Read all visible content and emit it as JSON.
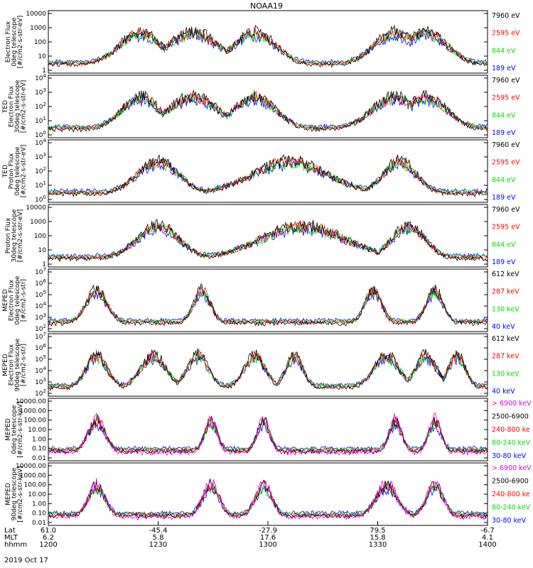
{
  "chart_data": {
    "type": "line",
    "title": "NOAA19",
    "date_label": "2019 Oct 17",
    "x_axis_rows": [
      {
        "label": "Lat",
        "values": [
          "61.0",
          "-45.4",
          "-27.9",
          "79.5",
          "-6.7"
        ]
      },
      {
        "label": "MLT",
        "values": [
          "6.2",
          "5.8",
          "17.6",
          "15.8",
          "4.1"
        ]
      },
      {
        "label": "hhmm",
        "values": [
          "1200",
          "1230",
          "1300",
          "1330",
          "1400"
        ]
      }
    ],
    "panels": [
      {
        "ylabel": [
          "Electron Flux",
          "0deg telescope",
          "[#/cm2-s-str-eV]"
        ],
        "yticks": [
          "10000",
          "1000",
          "100",
          "10",
          "1"
        ],
        "ylim": [
          1,
          10000
        ],
        "scale": "log",
        "legend": [
          {
            "label": "7960 eV",
            "color": "#000000"
          },
          {
            "label": "2595 eV",
            "color": "#ff0000"
          },
          {
            "label": "844 eV",
            "color": "#00dd00"
          },
          {
            "label": "189 eV",
            "color": "#0000ff"
          }
        ],
        "bursts": [
          [
            0.21,
            0.1
          ],
          [
            0.33,
            0.12
          ],
          [
            0.47,
            0.1
          ],
          [
            0.79,
            0.1
          ],
          [
            0.86,
            0.1
          ]
        ]
      },
      {
        "ylabel": [
          "TED",
          "Electron Flux",
          "30deg telescope",
          "[#/cm2-s-str-eV]"
        ],
        "yticks": [
          "10^4",
          "10^3",
          "10^2",
          "10^1",
          "10^0"
        ],
        "ylim": [
          1,
          10000
        ],
        "scale": "log",
        "legend": [
          {
            "label": "7960 eV",
            "color": "#000000"
          },
          {
            "label": "2595 eV",
            "color": "#ff0000"
          },
          {
            "label": "844 eV",
            "color": "#00dd00"
          },
          {
            "label": "189 eV",
            "color": "#0000ff"
          }
        ],
        "bursts": [
          [
            0.21,
            0.09
          ],
          [
            0.33,
            0.12
          ],
          [
            0.47,
            0.1
          ],
          [
            0.79,
            0.11
          ],
          [
            0.86,
            0.1
          ]
        ]
      },
      {
        "ylabel": [
          "TED",
          "Proton Flux",
          "0deg telescope",
          "[#/cm2-s-str-eV]"
        ],
        "yticks": [
          "10^4",
          "10^3",
          "10^2",
          "10^1",
          "10^0"
        ],
        "ylim": [
          1,
          10000
        ],
        "scale": "log",
        "legend": [
          {
            "label": "7960 eV",
            "color": "#000000"
          },
          {
            "label": "2595 eV",
            "color": "#ff0000"
          },
          {
            "label": "844 eV",
            "color": "#00dd00"
          },
          {
            "label": "189 eV",
            "color": "#0000ff"
          }
        ],
        "bursts": [
          [
            0.25,
            0.1
          ],
          [
            0.55,
            0.18
          ],
          [
            0.8,
            0.08
          ]
        ]
      },
      {
        "ylabel": [
          "Proton Flux",
          "30deg telescope",
          "[#/cm2-s-str-eV]"
        ],
        "yticks": [
          "10000",
          "1000",
          "100",
          "10",
          "1"
        ],
        "ylim": [
          1,
          10000
        ],
        "scale": "log",
        "legend": [
          {
            "label": "7960 eV",
            "color": "#000000"
          },
          {
            "label": "2595 eV",
            "color": "#ff0000"
          },
          {
            "label": "844 eV",
            "color": "#00dd00"
          },
          {
            "label": "189 eV",
            "color": "#0000ff"
          }
        ],
        "bursts": [
          [
            0.25,
            0.1
          ],
          [
            0.58,
            0.2
          ],
          [
            0.82,
            0.08
          ]
        ]
      },
      {
        "ylabel": [
          "MEPED",
          "Electron Flux",
          "0deg telescope",
          "[#/cm2-s-str]"
        ],
        "yticks": [
          "10^7",
          "10^6",
          "10^5",
          "10^4",
          "10^3",
          "10^2"
        ],
        "ylim": [
          100,
          10000000
        ],
        "scale": "log",
        "legend": [
          {
            "label": "612 keV",
            "color": "#000000"
          },
          {
            "label": "287 keV",
            "color": "#ff0000"
          },
          {
            "label": "130 keV",
            "color": "#00dd00"
          },
          {
            "label": "40 keV",
            "color": "#0000ff"
          }
        ],
        "bursts": [
          [
            0.11,
            0.05
          ],
          [
            0.35,
            0.04
          ],
          [
            0.74,
            0.04
          ],
          [
            0.88,
            0.04
          ]
        ]
      },
      {
        "ylabel": [
          "MEPED",
          "Electron Flux",
          "90deg telescope",
          "[#/cm2-s-str]"
        ],
        "yticks": [
          "10^7",
          "10^6",
          "10^5",
          "10^4",
          "10^3",
          "10^2"
        ],
        "ylim": [
          100,
          10000000
        ],
        "scale": "log",
        "legend": [
          {
            "label": "612 keV",
            "color": "#000000"
          },
          {
            "label": "287 keV",
            "color": "#ff0000"
          },
          {
            "label": "130 keV",
            "color": "#00dd00"
          },
          {
            "label": "40 keV",
            "color": "#0000ff"
          }
        ],
        "bursts": [
          [
            0.11,
            0.05
          ],
          [
            0.24,
            0.06
          ],
          [
            0.34,
            0.05
          ],
          [
            0.47,
            0.05
          ],
          [
            0.56,
            0.04
          ],
          [
            0.77,
            0.06
          ],
          [
            0.86,
            0.05
          ],
          [
            0.93,
            0.04
          ]
        ]
      },
      {
        "ylabel": [
          "MEPED",
          "0deg telescope",
          "[#/cm2-s-str-keV]"
        ],
        "yticks": [
          "10000.00",
          "1000.00",
          "100.00",
          "10.00",
          "1.00",
          "0.10",
          "0.01"
        ],
        "ylim": [
          0.01,
          10000
        ],
        "scale": "log",
        "legend": [
          {
            "label": "> 6900 keV",
            "color": "#dd00dd"
          },
          {
            "label": "2500-6900",
            "color": "#000000"
          },
          {
            "label": "240-800 ke",
            "color": "#ff0000"
          },
          {
            "label": "80-240 keV",
            "color": "#00dd00"
          },
          {
            "label": "30-80 keV",
            "color": "#0000ff"
          }
        ],
        "bursts": [
          [
            0.11,
            0.04
          ],
          [
            0.37,
            0.03
          ],
          [
            0.49,
            0.03
          ],
          [
            0.79,
            0.03
          ],
          [
            0.88,
            0.03
          ]
        ]
      },
      {
        "ylabel": [
          "MEPED",
          "90deg telescope",
          "[#/cm2-s-str-keV]"
        ],
        "yticks": [
          "10000.00",
          "1000.00",
          "100.00",
          "10.00",
          "1.00",
          "0.10",
          "0.01"
        ],
        "ylim": [
          0.01,
          10000
        ],
        "scale": "log",
        "legend": [
          {
            "label": "> 6900 keV",
            "color": "#dd00dd"
          },
          {
            "label": "2500-6900",
            "color": "#000000"
          },
          {
            "label": "240-800 ke",
            "color": "#ff0000"
          },
          {
            "label": "80-240 keV",
            "color": "#00dd00"
          },
          {
            "label": "30-80 keV",
            "color": "#0000ff"
          }
        ],
        "bursts": [
          [
            0.11,
            0.04
          ],
          [
            0.37,
            0.04
          ],
          [
            0.49,
            0.04
          ],
          [
            0.77,
            0.05
          ],
          [
            0.88,
            0.04
          ]
        ]
      }
    ]
  }
}
